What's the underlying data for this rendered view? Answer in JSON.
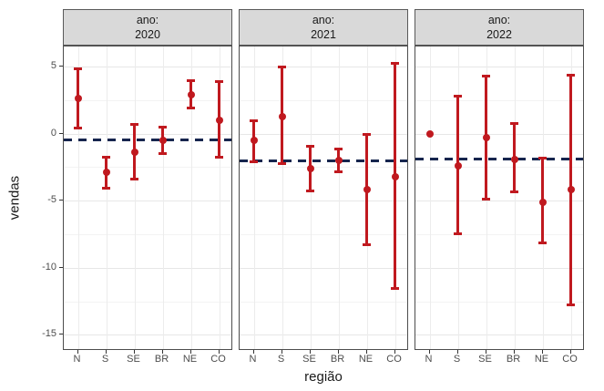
{
  "chart_data": {
    "type": "pointrange",
    "title": "",
    "xlabel": "região",
    "ylabel": "vendas",
    "facet_var": "ano",
    "categories": [
      "N",
      "S",
      "SE",
      "BR",
      "NE",
      "CO"
    ],
    "yticks": [
      5,
      0,
      -5,
      -10,
      -15
    ],
    "yticks_minor": [
      2.5,
      -2.5,
      -7.5,
      -12.5
    ],
    "ylim": [
      6.5,
      -16.2
    ],
    "grid": true,
    "legend": "none",
    "point_color": "#c0191f",
    "hline_color": "#16254e",
    "hline_style": "dashed",
    "facets": [
      {
        "strip_line1": "ano:",
        "strip_line2": "2020",
        "hline": -0.5,
        "points": [
          {
            "x": "N",
            "y": 2.6,
            "ymin": 0.4,
            "ymax": 4.9
          },
          {
            "x": "S",
            "y": -2.9,
            "ymin": -4.1,
            "ymax": -1.7
          },
          {
            "x": "SE",
            "y": -1.4,
            "ymin": -3.4,
            "ymax": 0.7
          },
          {
            "x": "BR",
            "y": -0.5,
            "ymin": -1.5,
            "ymax": 0.5
          },
          {
            "x": "NE",
            "y": 2.9,
            "ymin": 1.9,
            "ymax": 4.0
          },
          {
            "x": "CO",
            "y": 1.0,
            "ymin": -1.8,
            "ymax": 3.9
          }
        ]
      },
      {
        "strip_line1": "ano:",
        "strip_line2": "2021",
        "hline": -2.0,
        "points": [
          {
            "x": "N",
            "y": -0.5,
            "ymin": -2.1,
            "ymax": 1.0
          },
          {
            "x": "S",
            "y": 1.3,
            "ymin": -2.3,
            "ymax": 5.0
          },
          {
            "x": "SE",
            "y": -2.6,
            "ymin": -4.3,
            "ymax": -0.9
          },
          {
            "x": "BR",
            "y": -2.0,
            "ymin": -2.9,
            "ymax": -1.1
          },
          {
            "x": "NE",
            "y": -4.2,
            "ymin": -8.3,
            "ymax": 0.0
          },
          {
            "x": "CO",
            "y": -3.2,
            "ymin": -11.6,
            "ymax": 5.3
          }
        ]
      },
      {
        "strip_line1": "ano:",
        "strip_line2": "2022",
        "hline": -1.9,
        "points": [
          {
            "x": "N",
            "y": 0.0,
            "ymin": 0.0,
            "ymax": 0.0
          },
          {
            "x": "S",
            "y": -2.4,
            "ymin": -7.5,
            "ymax": 2.8
          },
          {
            "x": "SE",
            "y": -0.3,
            "ymin": -4.9,
            "ymax": 4.3
          },
          {
            "x": "BR",
            "y": -1.9,
            "ymin": -4.4,
            "ymax": 0.8
          },
          {
            "x": "NE",
            "y": -5.1,
            "ymin": -8.2,
            "ymax": -1.8
          },
          {
            "x": "CO",
            "y": -4.2,
            "ymin": -12.8,
            "ymax": 4.4
          }
        ]
      }
    ]
  }
}
